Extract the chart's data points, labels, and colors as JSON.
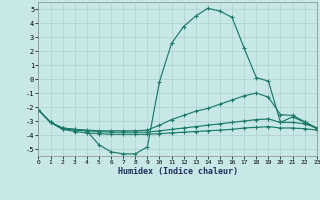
{
  "xlabel": "Humidex (Indice chaleur)",
  "xlim": [
    0,
    23
  ],
  "ylim": [
    -5.5,
    5.5
  ],
  "xticks": [
    0,
    1,
    2,
    3,
    4,
    5,
    6,
    7,
    8,
    9,
    10,
    11,
    12,
    13,
    14,
    15,
    16,
    17,
    18,
    19,
    20,
    21,
    22,
    23
  ],
  "yticks": [
    -5,
    -4,
    -3,
    -2,
    -1,
    0,
    1,
    2,
    3,
    4,
    5
  ],
  "bg_color": "#c8e8e8",
  "grid_color": "#b0d0d0",
  "line_color": "#1a7a6a",
  "series": [
    {
      "name": "line1_peak",
      "x": [
        0,
        1,
        2,
        3,
        4,
        5,
        6,
        7,
        8,
        9,
        10,
        11,
        12,
        13,
        14,
        15,
        16,
        17,
        18,
        19,
        20,
        21,
        22,
        23
      ],
      "y": [
        -2.2,
        -3.1,
        -3.5,
        -3.6,
        -3.7,
        -4.7,
        -5.2,
        -5.35,
        -5.35,
        -4.85,
        -0.2,
        2.55,
        3.75,
        4.5,
        5.05,
        4.85,
        4.4,
        2.2,
        0.1,
        -0.15,
        -3.1,
        -2.7,
        -3.1,
        -3.55
      ]
    },
    {
      "name": "line2_gradual",
      "x": [
        0,
        1,
        2,
        3,
        4,
        5,
        6,
        7,
        8,
        9,
        10,
        11,
        12,
        13,
        14,
        15,
        16,
        17,
        18,
        19,
        20,
        21,
        22,
        23
      ],
      "y": [
        -2.2,
        -3.1,
        -3.5,
        -3.6,
        -3.65,
        -3.7,
        -3.7,
        -3.7,
        -3.7,
        -3.65,
        -3.3,
        -2.9,
        -2.6,
        -2.3,
        -2.1,
        -1.8,
        -1.5,
        -1.2,
        -1.0,
        -1.3,
        -2.55,
        -2.6,
        -3.05,
        -3.5
      ]
    },
    {
      "name": "line3_flat",
      "x": [
        0,
        1,
        2,
        3,
        4,
        5,
        6,
        7,
        8,
        9,
        10,
        11,
        12,
        13,
        14,
        15,
        16,
        17,
        18,
        19,
        20,
        21,
        22,
        23
      ],
      "y": [
        -2.2,
        -3.1,
        -3.55,
        -3.65,
        -3.7,
        -3.75,
        -3.8,
        -3.8,
        -3.8,
        -3.8,
        -3.7,
        -3.6,
        -3.5,
        -3.4,
        -3.3,
        -3.2,
        -3.1,
        -3.0,
        -2.9,
        -2.85,
        -3.1,
        -3.1,
        -3.2,
        -3.5
      ]
    },
    {
      "name": "line4_bottom",
      "x": [
        0,
        1,
        2,
        3,
        4,
        5,
        6,
        7,
        8,
        9,
        10,
        11,
        12,
        13,
        14,
        15,
        16,
        17,
        18,
        19,
        20,
        21,
        22,
        23
      ],
      "y": [
        -2.2,
        -3.1,
        -3.6,
        -3.75,
        -3.85,
        -3.9,
        -3.95,
        -3.95,
        -3.95,
        -3.95,
        -3.9,
        -3.85,
        -3.8,
        -3.75,
        -3.7,
        -3.65,
        -3.6,
        -3.5,
        -3.45,
        -3.4,
        -3.5,
        -3.5,
        -3.55,
        -3.65
      ]
    }
  ]
}
